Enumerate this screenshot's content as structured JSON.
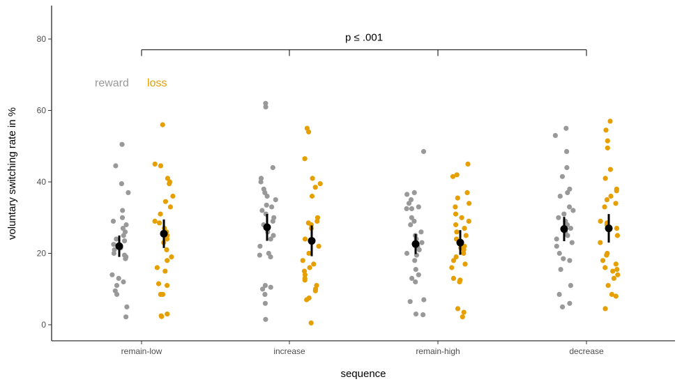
{
  "chart_data": {
    "type": "scatter",
    "xlabel": "sequence",
    "ylabel": "voluntary switching rate in %",
    "categories": [
      "remain-low",
      "increase",
      "remain-high",
      "decrease"
    ],
    "yticks": [
      0,
      20,
      40,
      60,
      80
    ],
    "ylim": [
      -4,
      89
    ],
    "grid": false,
    "legend": {
      "placement": "top-left",
      "entries": [
        {
          "label": "reward",
          "color": "#999999"
        },
        {
          "label": "loss",
          "color": "#E69F00"
        }
      ]
    },
    "annotation": {
      "text": "p ≤ .001",
      "bracket_from": "remain-low",
      "bracket_to": "decrease",
      "bracket_y": 77
    },
    "series": [
      {
        "name": "reward",
        "color": "#999999",
        "points": [
          [
            50.5,
            44.5,
            39.5,
            37,
            32,
            30,
            29,
            28,
            27,
            26,
            25,
            24,
            23.5,
            22.5,
            21.5,
            21,
            20,
            19.5,
            19,
            18.5,
            14,
            13,
            12,
            11,
            9.5,
            8.5,
            5,
            2.2
          ],
          [
            62,
            61,
            44,
            41,
            40,
            38,
            37,
            36,
            35,
            33.5,
            33,
            32,
            31,
            30,
            29,
            28,
            26,
            25,
            24,
            22,
            20,
            19.5,
            19,
            11,
            10.5,
            10,
            8.5,
            6,
            1.5
          ],
          [
            48.5,
            37,
            36.5,
            35,
            34,
            33,
            32.5,
            32.5,
            30,
            29,
            28,
            26,
            25,
            24,
            23,
            22,
            21,
            20,
            19.5,
            18,
            15.5,
            14,
            13,
            12,
            7,
            6.5,
            3,
            2.8
          ],
          [
            55,
            53,
            48.5,
            44,
            41.5,
            38,
            37,
            36,
            33,
            32,
            31,
            30,
            29,
            28,
            27,
            26,
            25,
            24,
            23,
            22,
            20,
            18.5,
            18,
            15.5,
            11,
            8.5,
            6,
            5
          ]
        ],
        "means": [
          22,
          27.3,
          22.6,
          26.8
        ],
        "ci": [
          [
            19,
            25
          ],
          [
            23.5,
            31
          ],
          [
            19.8,
            25.4
          ],
          [
            23.4,
            30.2
          ]
        ]
      },
      {
        "name": "loss",
        "color": "#E69F00",
        "points": [
          [
            56,
            45,
            44.5,
            41,
            40,
            39.5,
            36,
            34.5,
            33,
            31,
            29,
            28.5,
            27,
            26,
            25,
            24,
            23,
            21,
            19,
            18,
            16,
            15,
            11.5,
            11,
            8.5,
            8.5,
            3,
            2.5,
            2.3
          ],
          [
            55,
            54,
            46.5,
            41,
            39.5,
            38.5,
            36,
            30,
            29,
            28.5,
            28,
            27,
            24,
            22,
            20,
            18,
            17,
            16,
            15,
            14,
            13,
            12.5,
            11,
            10,
            9.5,
            7.5,
            7,
            0.5
          ],
          [
            45,
            42,
            41.5,
            37,
            35.5,
            34,
            33,
            31,
            30,
            29,
            28,
            27,
            26,
            25,
            24,
            23,
            22,
            21.5,
            21,
            20,
            19,
            18,
            17,
            16,
            13,
            12.5,
            12,
            4.5,
            3.5,
            2.2
          ],
          [
            57,
            54.5,
            51.5,
            49.5,
            43.5,
            41,
            38,
            37.5,
            36,
            35,
            34,
            33,
            29,
            28.5,
            28,
            27,
            25,
            23,
            20,
            19.5,
            18,
            17,
            16,
            15.5,
            15,
            14,
            13,
            11,
            8.5,
            8,
            4.5
          ]
        ],
        "means": [
          25.5,
          23.5,
          23,
          27
        ],
        "ci": [
          [
            21.5,
            29.5
          ],
          [
            19.2,
            27.8
          ],
          [
            19.6,
            26.5
          ],
          [
            23,
            31
          ]
        ]
      }
    ]
  }
}
